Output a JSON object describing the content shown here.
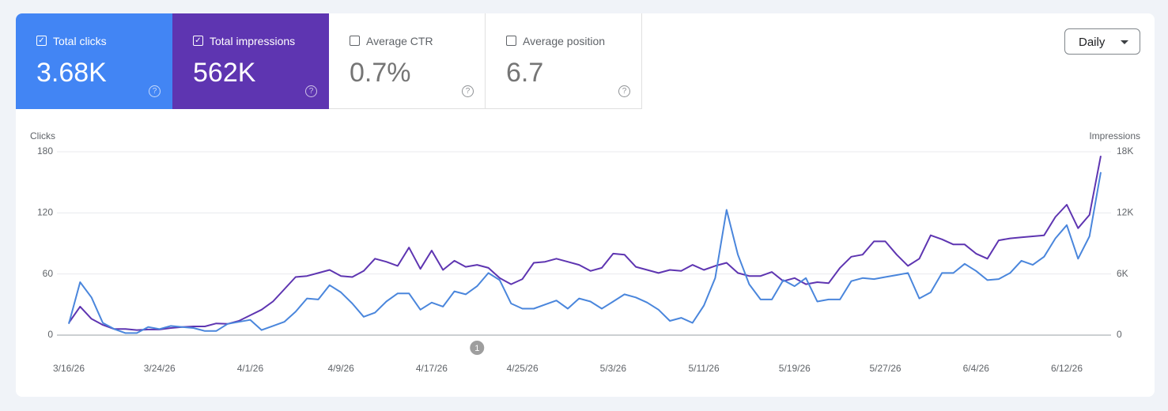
{
  "tiles": [
    {
      "label": "Total clicks",
      "value": "3.68K",
      "checked": true,
      "color": "#4285f4"
    },
    {
      "label": "Total impressions",
      "value": "562K",
      "checked": true,
      "color": "#5e35b1"
    },
    {
      "label": "Average CTR",
      "value": "0.7%",
      "checked": false,
      "color": "#ffffff"
    },
    {
      "label": "Average position",
      "value": "6.7",
      "checked": false,
      "color": "#ffffff"
    }
  ],
  "period": "Daily",
  "chart_data": {
    "type": "line",
    "x": [
      "3/16/26",
      "3/17/26",
      "3/18/26",
      "3/19/26",
      "3/20/26",
      "3/21/26",
      "3/22/26",
      "3/23/26",
      "3/24/26",
      "3/25/26",
      "3/26/26",
      "3/27/26",
      "3/28/26",
      "3/29/26",
      "3/30/26",
      "3/31/26",
      "4/1/26",
      "4/2/26",
      "4/3/26",
      "4/4/26",
      "4/5/26",
      "4/6/26",
      "4/7/26",
      "4/8/26",
      "4/9/26",
      "4/10/26",
      "4/11/26",
      "4/12/26",
      "4/13/26",
      "4/14/26",
      "4/15/26",
      "4/16/26",
      "4/17/26",
      "4/18/26",
      "4/19/26",
      "4/20/26",
      "4/21/26",
      "4/22/26",
      "4/23/26",
      "4/24/26",
      "4/25/26",
      "4/26/26",
      "4/27/26",
      "4/28/26",
      "4/29/26",
      "4/30/26",
      "5/1/26",
      "5/2/26",
      "5/3/26",
      "5/4/26",
      "5/5/26",
      "5/6/26",
      "5/7/26",
      "5/8/26",
      "5/9/26",
      "5/10/26",
      "5/11/26",
      "5/12/26",
      "5/13/26",
      "5/14/26",
      "5/15/26",
      "5/16/26",
      "5/17/26",
      "5/18/26",
      "5/19/26",
      "5/20/26",
      "5/21/26",
      "5/22/26",
      "5/23/26",
      "5/24/26",
      "5/25/26",
      "5/26/26",
      "5/27/26",
      "5/28/26",
      "5/29/26",
      "5/30/26",
      "5/31/26",
      "6/1/26",
      "6/2/26",
      "6/3/26",
      "6/4/26",
      "6/5/26",
      "6/6/26",
      "6/7/26",
      "6/8/26",
      "6/9/26",
      "6/10/26",
      "6/11/26",
      "6/12/26",
      "6/13/26",
      "6/14/26",
      "6/15/26"
    ],
    "xticks": [
      "3/16/26",
      "3/24/26",
      "4/1/26",
      "4/9/26",
      "4/17/26",
      "4/25/26",
      "5/3/26",
      "5/11/26",
      "5/19/26",
      "5/27/26",
      "6/4/26",
      "6/12/26"
    ],
    "ylim": [
      0,
      180
    ],
    "yticks": [
      0,
      60,
      120,
      180
    ],
    "y2lim": [
      0,
      18000
    ],
    "y2ticks": [
      0,
      {
        "value": 6000,
        "label": "6K"
      },
      {
        "value": 12000,
        "label": "12K"
      },
      {
        "value": 18000,
        "label": "18K"
      }
    ],
    "grid": true,
    "series": [
      {
        "name": "Clicks",
        "color": "#4a86dc",
        "values": [
          11,
          52,
          37,
          12,
          6,
          2,
          2,
          8,
          6,
          9,
          8,
          7,
          4,
          4,
          11,
          13,
          15,
          5,
          9,
          13,
          23,
          36,
          35,
          49,
          42,
          31,
          18,
          22,
          33,
          41,
          41,
          25,
          32,
          28,
          43,
          40,
          48,
          61,
          54,
          31,
          26,
          26,
          30,
          34,
          26,
          36,
          33,
          26,
          33,
          40,
          37,
          32,
          25,
          14,
          17,
          12,
          29,
          56,
          123,
          79,
          50,
          35,
          35,
          54,
          48,
          56,
          33,
          35,
          35,
          53,
          56,
          55,
          57,
          59,
          61,
          36,
          42,
          61,
          61,
          70,
          63,
          54,
          55,
          61,
          73,
          69,
          77,
          95,
          108,
          75,
          97,
          160
        ]
      },
      {
        "name": "Impressions",
        "color": "#5e35b1",
        "axis": "y2",
        "values": [
          1200,
          2800,
          1600,
          1000,
          600,
          600,
          500,
          550,
          550,
          700,
          800,
          850,
          850,
          1150,
          1100,
          1400,
          1950,
          2500,
          3300,
          4500,
          5700,
          5800,
          6100,
          6400,
          5800,
          5700,
          6300,
          7500,
          7200,
          6800,
          8600,
          6500,
          8300,
          6400,
          7300,
          6700,
          6900,
          6600,
          5600,
          5000,
          5500,
          7100,
          7200,
          7500,
          7200,
          6900,
          6300,
          6600,
          8000,
          7900,
          6700,
          6400,
          6100,
          6400,
          6300,
          6900,
          6400,
          6800,
          7100,
          6100,
          5800,
          5800,
          6200,
          5300,
          5600,
          5000,
          5200,
          5100,
          6600,
          7700,
          7900,
          9200,
          9200,
          7900,
          6800,
          7500,
          9800,
          9400,
          8900,
          8900,
          8000,
          7500,
          9300,
          9500,
          9600,
          9700,
          9800,
          11600,
          12800,
          10500,
          11800,
          17600
        ]
      }
    ],
    "annotations": [
      {
        "label": "1",
        "x": "4/21/26"
      }
    ]
  }
}
